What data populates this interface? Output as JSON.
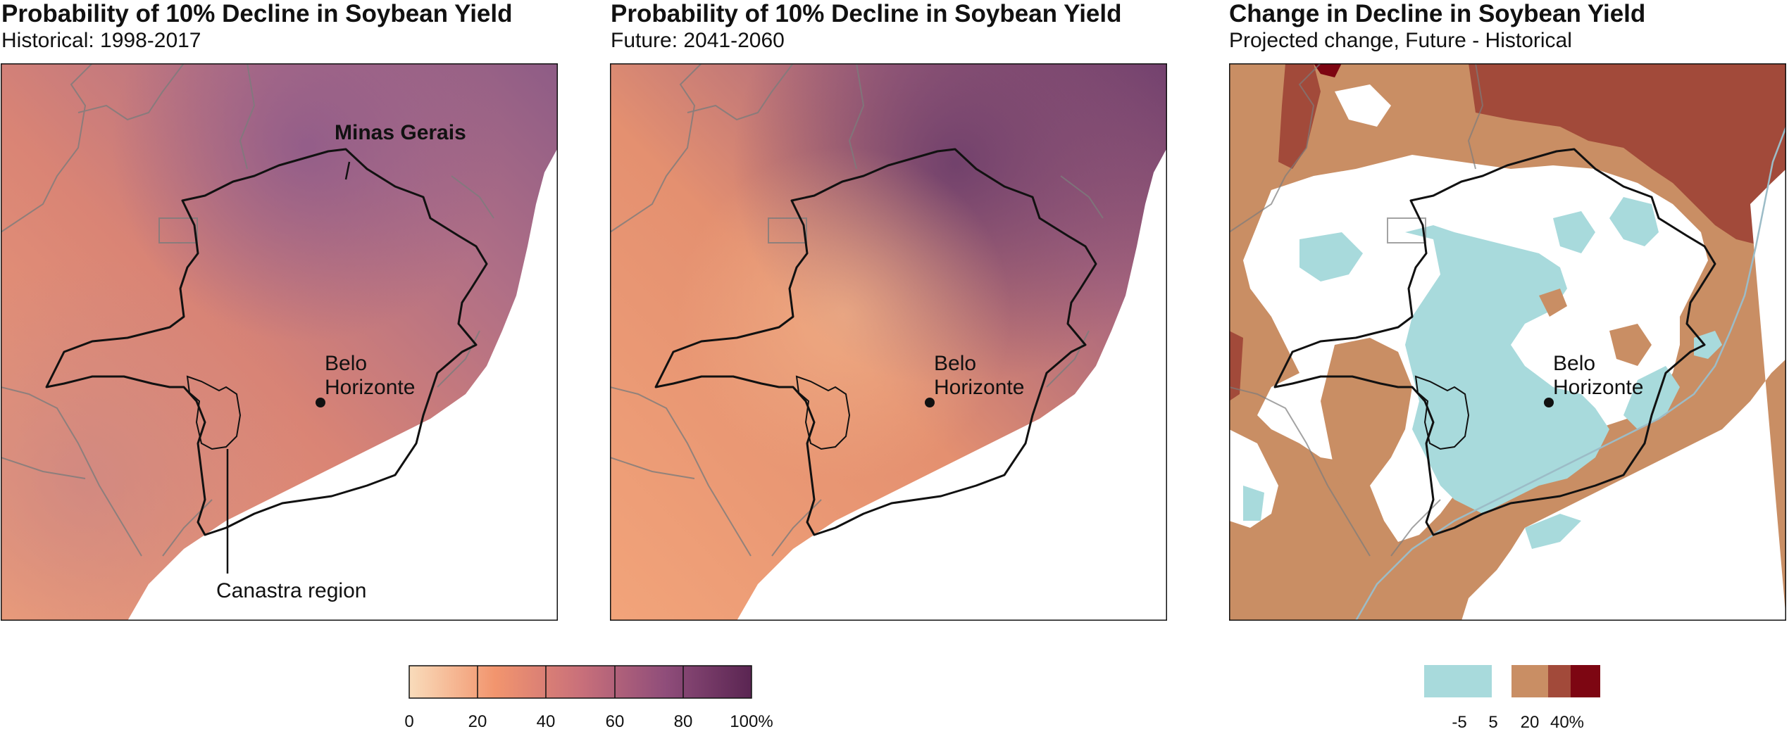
{
  "panels": [
    {
      "title": "Probability of 10% Decline in Soybean Yield",
      "subtitle": "Historical: 1998-2017"
    },
    {
      "title": "Probability of 10% Decline in Soybean Yield",
      "subtitle": "Future: 2041-2060"
    },
    {
      "title": "Change in Decline in Soybean Yield",
      "subtitle": "Projected change, Future - Historical"
    }
  ],
  "labels": {
    "state": "Minas Gerais",
    "city_line1": "Belo",
    "city_line2": "Horizonte",
    "region": "Canastra region"
  },
  "legend_continuous": {
    "ticks": [
      "0",
      "20",
      "40",
      "60",
      "80",
      "100%"
    ],
    "colors": [
      "#f9dcbb",
      "#f2956e",
      "#c9707a",
      "#8f4d7a",
      "#5a2552"
    ]
  },
  "legend_binned": {
    "ticks": [
      "-5",
      "5",
      "20",
      "40%"
    ],
    "colors": [
      "#a8dadc",
      "#ffffff",
      "#c98e64",
      "#a24a3a",
      "#7d0612"
    ]
  },
  "colors": {
    "water": "#ffffff",
    "boundary": "#111111",
    "context_lines": "#7c7c7c",
    "coast_line": "#9cbcc7"
  }
}
